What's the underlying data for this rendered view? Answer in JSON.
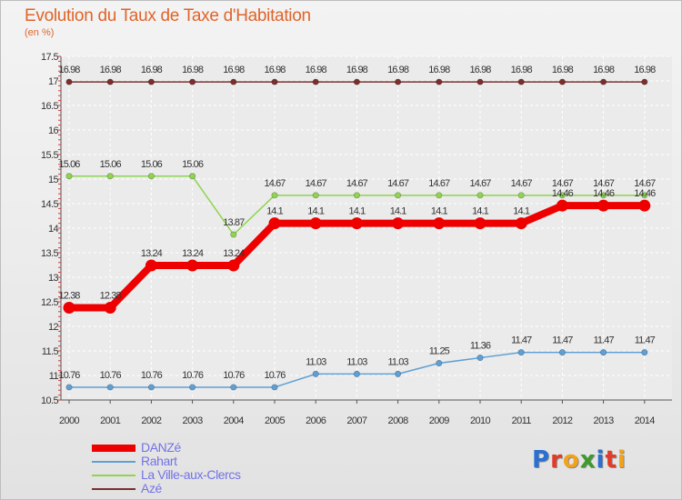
{
  "chart_data": {
    "type": "line",
    "title": "Evolution du Taux de Taxe d'Habitation",
    "ylabel": "(en %)",
    "xlabel": "",
    "x": [
      "2000",
      "2001",
      "2002",
      "2003",
      "2004",
      "2005",
      "2006",
      "2007",
      "2008",
      "2009",
      "2010",
      "2011",
      "2012",
      "2013",
      "2014"
    ],
    "ylim": [
      10.5,
      17.5
    ],
    "yticks": [
      "10.5",
      "11",
      "11.5",
      "12",
      "12.5",
      "13",
      "13.5",
      "14",
      "14.5",
      "15",
      "15.5",
      "16",
      "16.5",
      "17",
      "17.5"
    ],
    "grid": true,
    "legend_position": "bottom-left",
    "series": [
      {
        "name": "DANZé",
        "color": "#ee0000",
        "values": [
          12.38,
          12.38,
          13.24,
          13.24,
          13.24,
          14.1,
          14.1,
          14.1,
          14.1,
          14.1,
          14.1,
          14.1,
          14.46,
          14.46,
          14.46
        ],
        "labels": [
          "12.38",
          "12.38",
          "13.24",
          "13.24",
          "13.24",
          "14.1",
          "14.1",
          "14.1",
          "14.1",
          "14.1",
          "14.1",
          "14.1",
          "14.46",
          "14.46",
          "14.46"
        ]
      },
      {
        "name": "Rahart",
        "color": "#5ea0d6",
        "values": [
          10.76,
          10.76,
          10.76,
          10.76,
          10.76,
          10.76,
          11.03,
          11.03,
          11.03,
          11.25,
          11.36,
          11.47,
          11.47,
          11.47,
          11.47
        ],
        "labels": [
          "10.76",
          "10.76",
          "10.76",
          "10.76",
          "10.76",
          "10.76",
          "11.03",
          "11.03",
          "11.03",
          "11.25",
          "11.36",
          "11.47",
          "11.47",
          "11.47",
          "11.47"
        ]
      },
      {
        "name": "La Ville-aux-Clercs",
        "color": "#8fd450",
        "values": [
          15.06,
          15.06,
          15.06,
          15.06,
          13.87,
          14.67,
          14.67,
          14.67,
          14.67,
          14.67,
          14.67,
          14.67,
          14.67,
          14.67,
          14.67
        ],
        "labels": [
          "15.06",
          "15.06",
          "15.06",
          "15.06",
          "13.87",
          "14.67",
          "14.67",
          "14.67",
          "14.67",
          "14.67",
          "14.67",
          "14.67",
          "14.67",
          "14.67",
          "14.67"
        ]
      },
      {
        "name": "Azé",
        "color": "#7a2e2e",
        "values": [
          16.98,
          16.98,
          16.98,
          16.98,
          16.98,
          16.98,
          16.98,
          16.98,
          16.98,
          16.98,
          16.98,
          16.98,
          16.98,
          16.98,
          16.98
        ],
        "labels": [
          "16.98",
          "16.98",
          "16.98",
          "16.98",
          "16.98",
          "16.98",
          "16.98",
          "16.98",
          "16.98",
          "16.98",
          "16.98",
          "16.98",
          "16.98",
          "16.98",
          "16.98"
        ]
      }
    ]
  },
  "logo": {
    "text": "Proxiti",
    "letters": [
      {
        "char": "P",
        "color": "#2a6fd2"
      },
      {
        "char": "r",
        "color": "#e23b2a"
      },
      {
        "char": "o",
        "color": "#f2a21c"
      },
      {
        "char": "x",
        "color": "#3e9a2e"
      },
      {
        "char": "i",
        "color": "#2a6fd2"
      },
      {
        "char": "t",
        "color": "#e23b2a"
      },
      {
        "char": "i",
        "color": "#f2a21c"
      }
    ]
  }
}
